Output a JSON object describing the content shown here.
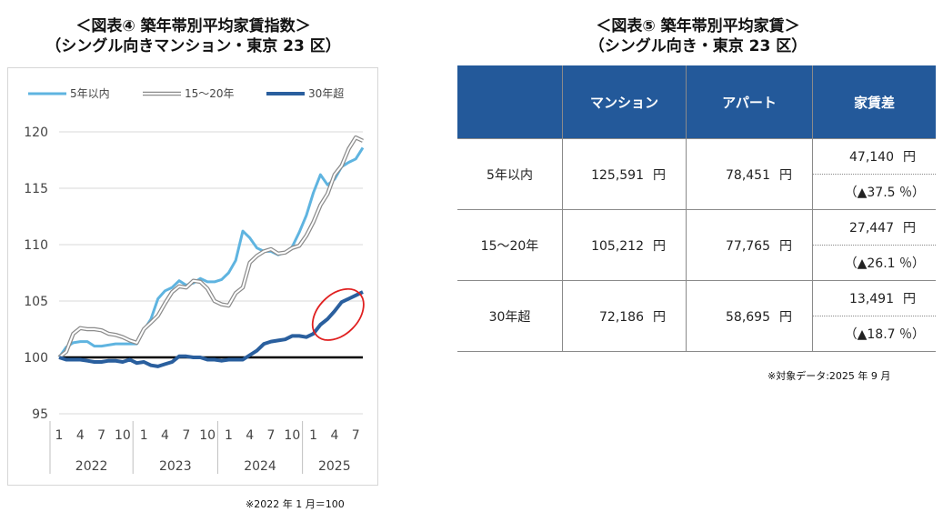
{
  "left_figure": {
    "title": "＜図表④ 築年帯別平均家賃指数＞",
    "subtitle": "（シングル向きマンション・東京 23 区）",
    "note": "※2022 年 1 月＝100"
  },
  "right_figure": {
    "title": "＜図表⑤ 築年帯別平均家賃＞",
    "subtitle": "（シングル向き・東京 23 区）",
    "note": "※対象データ:2025 年 9 月",
    "columns": [
      "",
      "マンション",
      "アパート",
      "家賃差"
    ],
    "unit": "円",
    "rows": [
      {
        "label": "5年以内",
        "mansion": "125,591",
        "apart": "78,451",
        "diff": "47,140",
        "pct": "（▲37.5 ％）"
      },
      {
        "label": "15～20年",
        "mansion": "105,212",
        "apart": "77,765",
        "diff": "27,447",
        "pct": "（▲26.1 ％）"
      },
      {
        "label": "30年超",
        "mansion": "72,186",
        "apart": "58,695",
        "diff": "13,491",
        "pct": "（▲18.7 ％）"
      }
    ]
  },
  "colors": {
    "series_5y": "#5fb4e0",
    "series_15_20y": "#8c8c8c",
    "series_30y": "#2a5f9e",
    "baseline": "#000000",
    "highlight": "#e02020",
    "table_header": "#23599a"
  },
  "chart_data": {
    "type": "line",
    "ylim": [
      95,
      120
    ],
    "yticks": [
      "95",
      "100",
      "105",
      "110",
      "115",
      "120"
    ],
    "x_tick_labels": [
      "1",
      "4",
      "7",
      "10",
      "1",
      "4",
      "7",
      "10",
      "1",
      "4",
      "7",
      "10",
      "1",
      "4",
      "7"
    ],
    "years": [
      "2022",
      "2023",
      "2024",
      "2025"
    ],
    "baseline_value": 100,
    "series": [
      {
        "name": "5年以内",
        "style": "solid-light-blue",
        "values": [
          100,
          100.9,
          101.3,
          101.4,
          101.4,
          101.0,
          101.0,
          101.1,
          101.2,
          101.2,
          101.2,
          101.2,
          102.4,
          103.4,
          105.2,
          105.9,
          106.2,
          106.8,
          106.4,
          106.6,
          107.0,
          106.7,
          106.7,
          106.9,
          107.5,
          108.6,
          111.2,
          110.6,
          109.7,
          109.4,
          109.4,
          109.1,
          109.3,
          109.8,
          111.1,
          112.6,
          114.6,
          116.2,
          115.3,
          115.8,
          116.9,
          117.3,
          117.6,
          118.6
        ]
      },
      {
        "name": "15～20年",
        "style": "double-gray",
        "values": [
          100,
          100.5,
          102.1,
          102.6,
          102.5,
          102.5,
          102.4,
          102.1,
          102.0,
          101.8,
          101.5,
          101.3,
          102.5,
          103.1,
          103.7,
          104.8,
          105.8,
          106.3,
          106.2,
          106.8,
          106.7,
          106.1,
          105.0,
          104.7,
          104.6,
          105.7,
          106.2,
          108.4,
          109.0,
          109.4,
          109.6,
          109.2,
          109.3,
          109.7,
          109.9,
          110.8,
          112.0,
          113.5,
          114.5,
          116.2,
          117.0,
          118.5,
          119.5,
          119.2
        ]
      },
      {
        "name": "30年超",
        "style": "bold-dark-blue",
        "values": [
          100,
          99.8,
          99.8,
          99.8,
          99.7,
          99.6,
          99.6,
          99.7,
          99.7,
          99.6,
          99.8,
          99.5,
          99.6,
          99.3,
          99.2,
          99.4,
          99.6,
          100.1,
          100.1,
          100.0,
          100.0,
          99.8,
          99.8,
          99.7,
          99.8,
          99.8,
          99.8,
          100.2,
          100.6,
          101.2,
          101.4,
          101.5,
          101.6,
          101.9,
          101.9,
          101.8,
          102.1,
          102.9,
          103.4,
          104.1,
          104.9,
          105.2,
          105.5,
          105.8
        ]
      }
    ]
  }
}
